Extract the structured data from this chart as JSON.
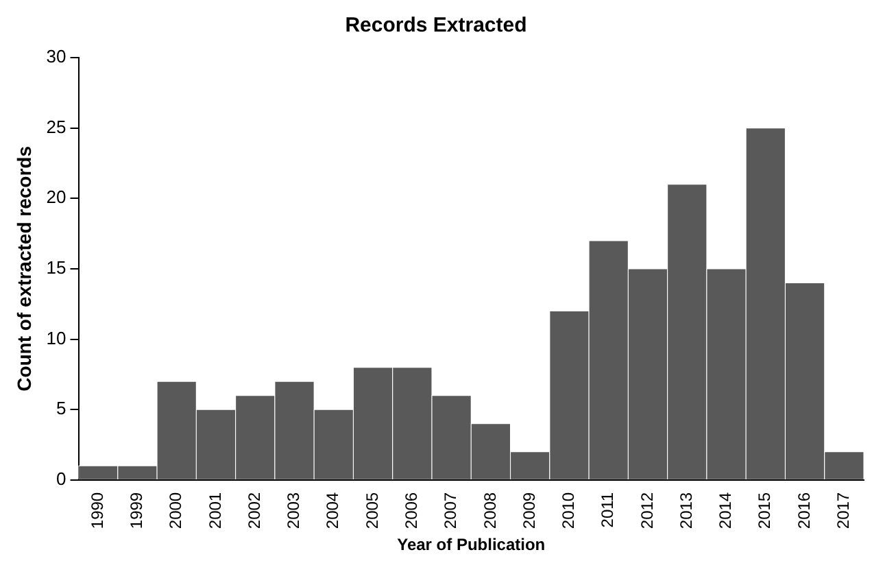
{
  "chart_data": {
    "type": "bar",
    "title": "Records Extracted",
    "xlabel": "Year of Publication",
    "ylabel": "Count of extracted records",
    "categories": [
      "1990",
      "1999",
      "2000",
      "2001",
      "2002",
      "2003",
      "2004",
      "2005",
      "2006",
      "2007",
      "2008",
      "2009",
      "2010",
      "2011",
      "2012",
      "2013",
      "2014",
      "2015",
      "2016",
      "2017"
    ],
    "values": [
      1,
      1,
      7,
      5,
      6,
      7,
      5,
      8,
      8,
      6,
      4,
      2,
      12,
      17,
      15,
      21,
      15,
      25,
      14,
      2
    ],
    "color": "#595959",
    "ylim": [
      0,
      30
    ],
    "yticks": [
      0,
      5,
      10,
      15,
      20,
      25,
      30
    ],
    "grid": false,
    "legend": false
  }
}
